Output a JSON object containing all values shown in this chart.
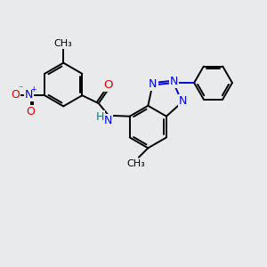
{
  "bg_color": "#e8eaec",
  "bond_color": "#000000",
  "bond_width": 1.4,
  "atom_colors": {
    "C": "#000000",
    "N": "#0000dd",
    "O": "#dd0000",
    "H": "#008080"
  },
  "font_size": 8.5,
  "figsize": [
    3.0,
    3.0
  ],
  "dpi": 100
}
